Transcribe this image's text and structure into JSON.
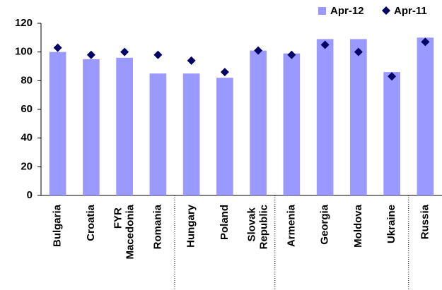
{
  "chart_data": {
    "type": "bar",
    "categories": [
      "Bulgaria",
      "Croatia",
      "FYR Macedonia",
      "Romania",
      "Hungary",
      "Poland",
      "Slovak Republic",
      "Armenia",
      "Georgia",
      "Moldova",
      "Ukraine",
      "Russia"
    ],
    "series": [
      {
        "name": "Apr-12",
        "type": "bar",
        "color": "#9999ff",
        "values": [
          100,
          95,
          96,
          85,
          85,
          82,
          101,
          99,
          109,
          109,
          86,
          110
        ]
      },
      {
        "name": "Apr-11",
        "type": "scatter",
        "color": "#000066",
        "values": [
          103,
          98,
          100,
          98,
          94,
          86,
          101,
          98,
          105,
          100,
          83,
          107
        ]
      }
    ],
    "ylim": [
      0,
      120
    ],
    "yticks": [
      0,
      20,
      40,
      60,
      80,
      100,
      120
    ],
    "grid": false,
    "legend": "top-right"
  }
}
